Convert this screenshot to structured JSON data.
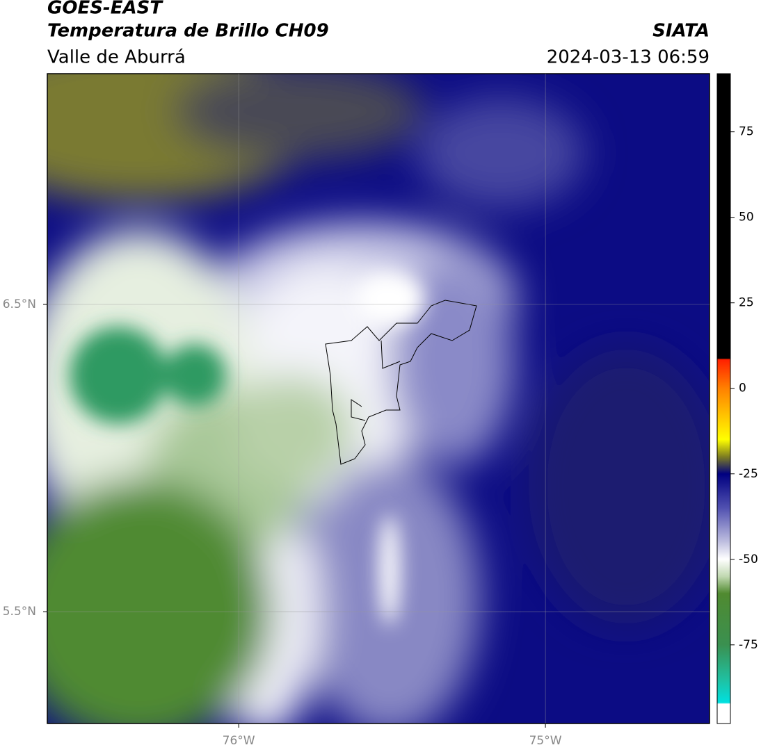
{
  "header": {
    "title": "GOES-EAST",
    "subtitle": "Temperatura de Brillo CH09",
    "region": "Valle de Aburrá",
    "source": "SIATA",
    "timestamp": "2024-03-13 06:59"
  },
  "map": {
    "xlim": [
      -76.624,
      -74.465
    ],
    "ylim": [
      5.136,
      7.251
    ],
    "lon_ticks": [
      {
        "value": -76,
        "label": "76°W"
      },
      {
        "value": -75,
        "label": "75°W"
      }
    ],
    "lat_ticks": [
      {
        "value": 6.5,
        "label": "6.5°N"
      },
      {
        "value": 5.5,
        "label": "5.5°N"
      }
    ]
  },
  "colorbar": {
    "lim": [
      -98,
      92
    ],
    "ticks": [
      75,
      50,
      25,
      0,
      -25,
      -50,
      -75
    ]
  }
}
